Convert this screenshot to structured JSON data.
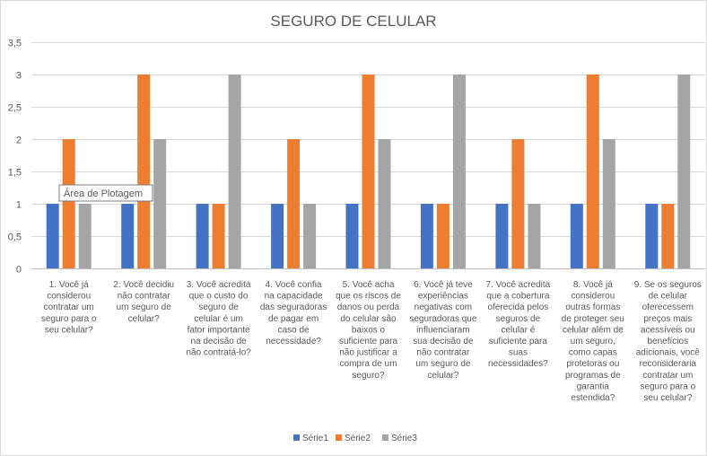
{
  "chart_data": {
    "type": "bar",
    "title": "SEGURO DE CELULAR",
    "xlabel": "",
    "ylabel": "",
    "ylim": [
      0,
      3.5
    ],
    "yticks": [
      "0",
      "0,5",
      "1",
      "1,5",
      "2",
      "2,5",
      "3",
      "3,5"
    ],
    "ytick_values": [
      0,
      0.5,
      1,
      1.5,
      2,
      2.5,
      3,
      3.5
    ],
    "grid": true,
    "legend_position": "bottom",
    "categories": [
      "1. Você já considerou contratar um seguro para o seu celular?",
      "2. Você decidiu não contratar um seguro de celular?",
      "3. Você acredita que o custo do seguro de celular é um fator importante na decisão de não contratá-lo?",
      "4. Você confia na capacidade das seguradoras de pagar em caso de necessidade?",
      "5. Você acha que os riscos de danos ou perda do celular são baixos o suficiente para não justificar a compra de um seguro?",
      "6. Você já teve experiências negativas com seguradoras que influenciaram sua decisão de não contratar um seguro de celular?",
      "7. Você acredita que a cobertura oferecida pelos seguros de celular é suficiente para suas necessidades?",
      "8. Você já considerou outras formas de proteger seu celular além de um seguro, como capas protetoras ou programas de garantia estendida?",
      "9. Se os seguros de celular oferecessem preços mais acessíveis ou benefícios adicionais, você reconsideraria contratar um seguro para o seu celular?"
    ],
    "category_lines": [
      [
        "1. Você já",
        "considerou",
        "contratar um",
        "seguro para o",
        "seu celular?"
      ],
      [
        "2. Você decidiu",
        "não contratar",
        "um seguro de",
        "celular?"
      ],
      [
        "3. Você acredita",
        "que o custo do",
        "seguro de",
        "celular é um",
        "fator importante",
        "na decisão de",
        "não contratá-lo?"
      ],
      [
        "4. Você confia",
        "na capacidade",
        "das seguradoras",
        "de pagar em",
        "caso de",
        "necessidade?"
      ],
      [
        "5. Você acha",
        "que os riscos de",
        "danos ou perda",
        "do celular são",
        "baixos o",
        "suficiente para",
        "não justificar a",
        "compra de um",
        "seguro?"
      ],
      [
        "6. Você já teve",
        "experiências",
        "negativas com",
        "seguradoras que",
        "influenciaram",
        "sua decisão de",
        "não contratar",
        "um seguro de",
        "celular?"
      ],
      [
        "7. Você acredita",
        "que a cobertura",
        "oferecida pelos",
        "seguros de",
        "celular é",
        "suficiente para",
        "suas",
        "necessidades?"
      ],
      [
        "8. Você já",
        "considerou",
        "outras formas",
        "de proteger seu",
        "celular além de",
        "um seguro,",
        "como capas",
        "protetoras ou",
        "programas de",
        "garantia",
        "estendida?"
      ],
      [
        "9. Se os seguros",
        "de celular",
        "oferecessem",
        "preços mais",
        "acessíveis ou",
        "benefícios",
        "adicionais, você",
        "reconsideraria",
        "contratar um",
        "seguro para o",
        "seu celular?"
      ]
    ],
    "series": [
      {
        "name": "Série1",
        "color": "#4472C4",
        "values": [
          1,
          1,
          1,
          1,
          1,
          1,
          1,
          1,
          1
        ]
      },
      {
        "name": "Série2",
        "color": "#ED7D31",
        "values": [
          2,
          3,
          1,
          2,
          3,
          1,
          2,
          3,
          1
        ]
      },
      {
        "name": "Série3",
        "color": "#A5A5A5",
        "values": [
          1,
          2,
          3,
          1,
          2,
          3,
          1,
          2,
          3
        ]
      }
    ],
    "tooltip": "Área de Plotagem"
  }
}
